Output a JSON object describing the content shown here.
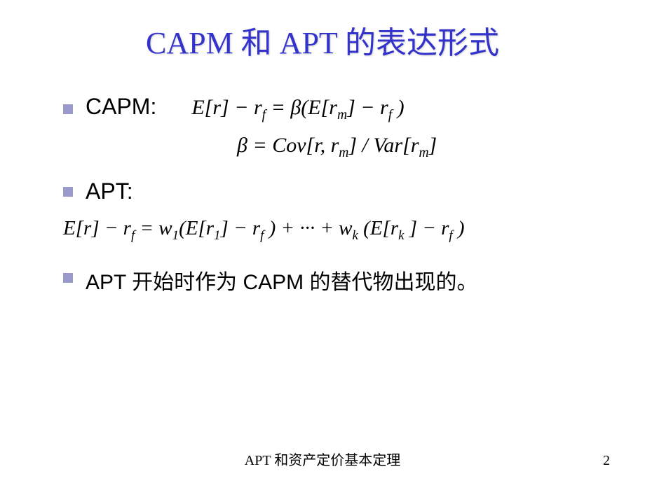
{
  "title": "CAPM 和 APT  的表达形式",
  "capm": {
    "label": "CAPM:",
    "formula1": "E[r] − r<sub>f</sub> = β(E[r<sub>m</sub>] − r<sub>f</sub>)",
    "formula2": "β = Cov[r, r<sub>m</sub>] / Var[r<sub>m</sub>]"
  },
  "apt": {
    "label": "APT:",
    "formula": "E[r] − r<sub>f</sub> = w<sub>1</sub>(E[r<sub>1</sub>] − r<sub>f</sub>) + ··· + w<sub>k</sub>(E[r<sub>k</sub>] − r<sub>f</sub>)"
  },
  "conclusion": "APT 开始时作为  CAPM  的替代物出现的。",
  "footer": "APT 和资产定价基本定理",
  "page": "2",
  "colors": {
    "title": "#3333cc",
    "bullet": "#9999cc",
    "text": "#000000",
    "background": "#ffffff"
  }
}
